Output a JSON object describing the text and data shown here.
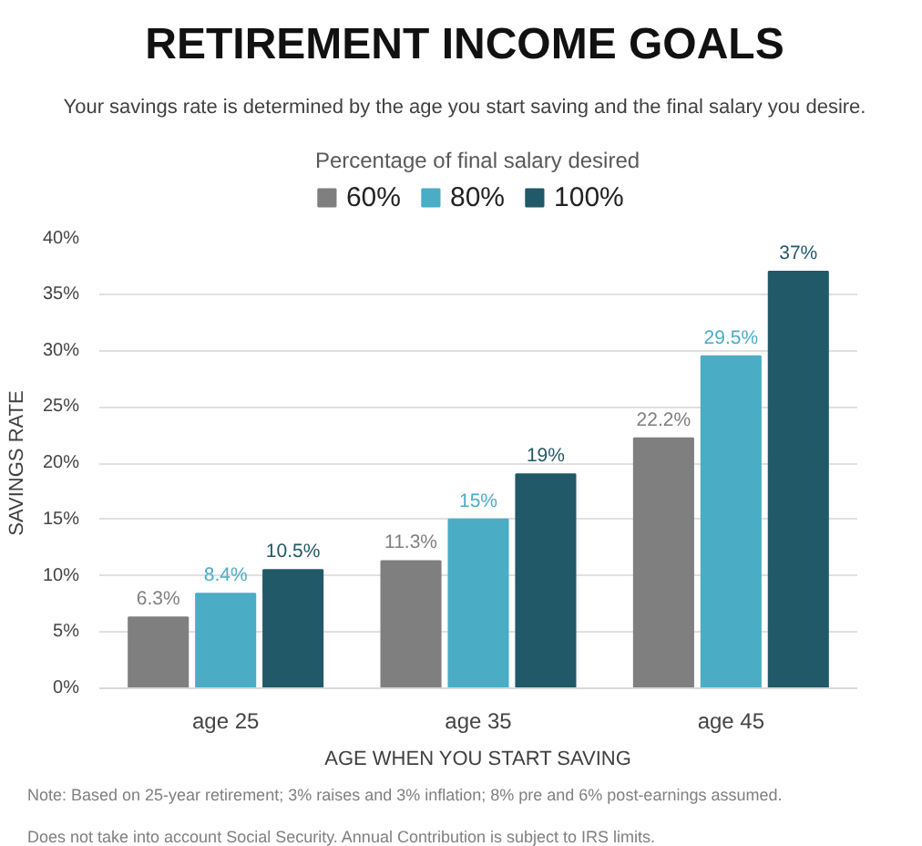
{
  "chart_data": {
    "type": "bar",
    "title": "RETIREMENT INCOME GOALS",
    "subtitle": "Your savings rate is determined by the age you start saving and the final salary you desire.",
    "xlabel": "AGE WHEN YOU START SAVING",
    "ylabel": "SAVINGS RATE",
    "legend_title": "Percentage of final salary desired",
    "categories": [
      "age 25",
      "age 35",
      "age 45"
    ],
    "series": [
      {
        "name": "60%",
        "color": "#7f7f7f",
        "values": [
          6.3,
          11.3,
          22.2
        ],
        "value_labels": [
          "6.3%",
          "11.3%",
          "22.2%"
        ]
      },
      {
        "name": "80%",
        "color": "#4bacc6",
        "values": [
          8.4,
          15,
          29.5
        ],
        "value_labels": [
          "8.4%",
          "15%",
          "29.5%"
        ]
      },
      {
        "name": "100%",
        "color": "#215968",
        "values": [
          10.5,
          19,
          37
        ],
        "value_labels": [
          "10.5%",
          "19%",
          "37%"
        ]
      }
    ],
    "ylim": [
      0,
      40
    ],
    "yticks": [
      {
        "value": 0,
        "label": "0%"
      },
      {
        "value": 5,
        "label": "5%"
      },
      {
        "value": 10,
        "label": "10%"
      },
      {
        "value": 15,
        "label": "15%"
      },
      {
        "value": 20,
        "label": "20%"
      },
      {
        "value": 25,
        "label": "25%"
      },
      {
        "value": 30,
        "label": "30%"
      },
      {
        "value": 35,
        "label": "35%"
      },
      {
        "value": 40,
        "label": "40%"
      }
    ],
    "grid": "y",
    "legend": "top",
    "annotations": [
      "Note: Based on 25-year retirement; 3% raises and 3% inflation; 8% pre and 6% post-earnings assumed.",
      "Does not take into account Social Security. Annual Contribution is subject to IRS limits."
    ]
  }
}
